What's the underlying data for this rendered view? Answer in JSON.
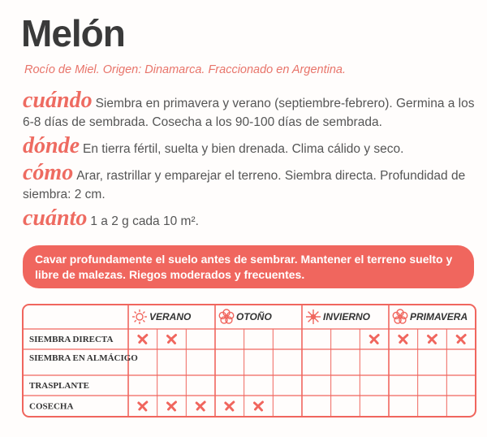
{
  "title": "Melón",
  "subtitle": "Rocío de Miel. Origen: Dinamarca. Fraccionado en Argentina.",
  "sections": [
    {
      "heading": "cuándo",
      "text": "Siembra en primavera y verano (septiembre-febrero). Germi­na a los 6-8 días de sembrada. Cosecha a los 90-100 días  de sembrada."
    },
    {
      "heading": "dónde",
      "text": "En tierra fértil, suelta y bien drenada. Clima cálido y seco."
    },
    {
      "heading": "cómo",
      "text": "Arar, rastrillar y emparejar el terreno. Siembra directa. Profundidad de siembra: 2 cm."
    },
    {
      "heading": "cuánto",
      "text": "1 a 2 g cada 10 m²."
    }
  ],
  "banner": "Cavar profundamente el suelo antes de sembrar. Mantener el terreno suelto y libre de malezas. Riegos moderados y frecuentes.",
  "table": {
    "seasons": [
      "VERANO",
      "OTOÑO",
      "INVIERNO",
      "PRIMAVERA"
    ],
    "rows": [
      {
        "label": "SIEMBRA DIRECTA",
        "marks": [
          true,
          true,
          false,
          false,
          false,
          false,
          false,
          false,
          true,
          true,
          true,
          true
        ]
      },
      {
        "label": "SIEMBRA EN ALMÁCIGO",
        "marks": [
          false,
          false,
          false,
          false,
          false,
          false,
          false,
          false,
          false,
          false,
          false,
          false
        ]
      },
      {
        "label": "TRASPLANTE",
        "marks": [
          false,
          false,
          false,
          false,
          false,
          false,
          false,
          false,
          false,
          false,
          false,
          false
        ]
      },
      {
        "label": "COSECHA",
        "marks": [
          true,
          true,
          true,
          true,
          true,
          false,
          false,
          false,
          false,
          false,
          false,
          false
        ]
      }
    ]
  }
}
